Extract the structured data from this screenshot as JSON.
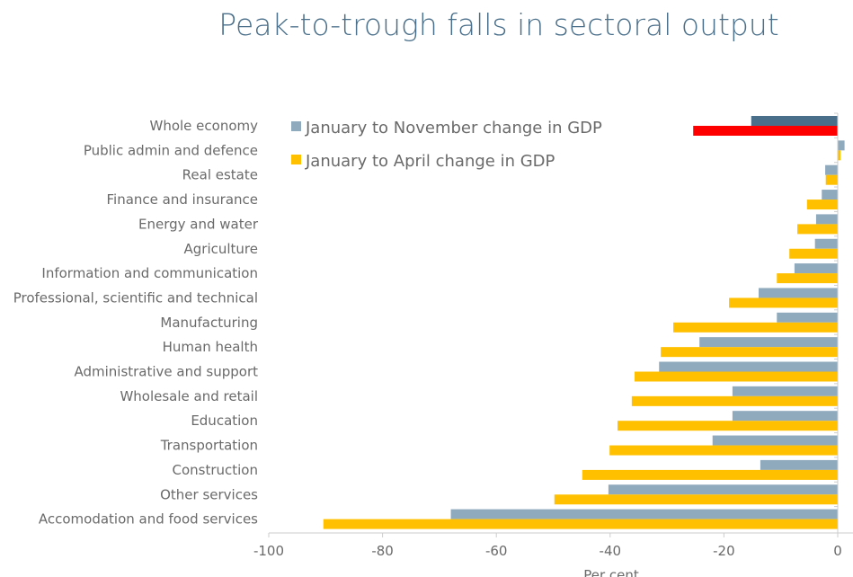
{
  "chart_data": {
    "type": "bar",
    "orientation": "horizontal",
    "title": "Peak-to-trough falls in sectoral output",
    "xlabel": "Per cent",
    "xlim": [
      -100,
      0
    ],
    "xticks": [
      -100,
      -80,
      -60,
      -40,
      -20,
      0
    ],
    "grid": false,
    "legend_position": "top-left",
    "categories": [
      "Whole economy",
      "Public admin and defence",
      "Real estate",
      "Finance and insurance",
      "Energy and water",
      "Agriculture",
      "Information and communication",
      "Professional, scientific and technical",
      "Manufacturing",
      "Human health",
      "Administrative and support",
      "Wholesale and retail",
      "Education",
      "Transportation",
      "Construction",
      "Other services",
      "Accomodation and food services"
    ],
    "series": [
      {
        "name": "January to November change in GDP",
        "color": "#8fa9bd",
        "highlight_color": "#4a6f8a",
        "values": [
          -15.2,
          1.2,
          -2.2,
          -2.8,
          -3.8,
          -4.0,
          -7.6,
          -13.9,
          -10.7,
          -24.3,
          -31.4,
          -18.5,
          -18.5,
          -22.0,
          -13.6,
          -40.3,
          -68.0
        ]
      },
      {
        "name": "January to April change in GDP",
        "color": "#ffc000",
        "highlight_color": "#ff0000",
        "values": [
          -25.4,
          0.5,
          -2.1,
          -5.4,
          -7.1,
          -8.5,
          -10.7,
          -19.1,
          -28.9,
          -31.1,
          -35.7,
          -36.2,
          -38.7,
          -40.1,
          -44.9,
          -49.8,
          -90.4
        ]
      }
    ]
  }
}
